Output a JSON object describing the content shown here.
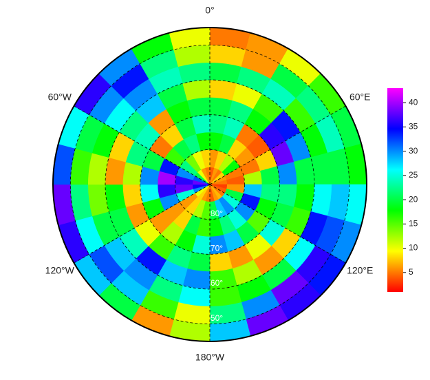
{
  "map": {
    "lon_labels": [
      {
        "value": 0,
        "label": "0°"
      },
      {
        "value": 60,
        "label": "60°E"
      },
      {
        "value": 120,
        "label": "120°E"
      },
      {
        "value": 180,
        "label": "180°W"
      },
      {
        "value": -120,
        "label": "120°W"
      },
      {
        "value": -60,
        "label": "60°W"
      }
    ],
    "lat_labels": [
      {
        "value": 80,
        "label": "80°"
      },
      {
        "value": 70,
        "label": "70°"
      },
      {
        "value": 60,
        "label": "60°"
      },
      {
        "value": 50,
        "label": "50°"
      }
    ],
    "lat_edges": [
      90,
      85,
      80,
      75,
      70,
      65,
      60,
      55,
      50,
      45
    ],
    "lon_edges": [
      0,
      15,
      30,
      45,
      60,
      75,
      90,
      105,
      120,
      135,
      150,
      165,
      180,
      195,
      210,
      225,
      240,
      255,
      270,
      285,
      300,
      315,
      330,
      345,
      360
    ],
    "values": [
      [
        4,
        6,
        5,
        8,
        6,
        5,
        3,
        4,
        5,
        7,
        6,
        4,
        5,
        6,
        8,
        10,
        30,
        35,
        38,
        32,
        20,
        10,
        6,
        5
      ],
      [
        6,
        8,
        12,
        18,
        5,
        4,
        6,
        20,
        25,
        30,
        28,
        20,
        15,
        12,
        8,
        6,
        25,
        38,
        36,
        30,
        22,
        14,
        10,
        8
      ],
      [
        18,
        20,
        8,
        6,
        5,
        12,
        28,
        34,
        30,
        25,
        22,
        18,
        16,
        20,
        8,
        6,
        30,
        36,
        40,
        34,
        16,
        20,
        22,
        18
      ],
      [
        22,
        24,
        5,
        4,
        8,
        20,
        22,
        18,
        15,
        20,
        28,
        30,
        25,
        18,
        12,
        6,
        18,
        26,
        30,
        20,
        5,
        8,
        20,
        24
      ],
      [
        20,
        22,
        18,
        36,
        38,
        30,
        22,
        20,
        25,
        10,
        6,
        8,
        20,
        22,
        16,
        10,
        6,
        8,
        12,
        22,
        24,
        6,
        18,
        20
      ],
      [
        8,
        10,
        16,
        34,
        30,
        20,
        18,
        16,
        8,
        6,
        12,
        16,
        30,
        28,
        34,
        24,
        20,
        18,
        6,
        8,
        22,
        28,
        20,
        12
      ],
      [
        20,
        22,
        24,
        16,
        18,
        20,
        26,
        34,
        26,
        20,
        18,
        16,
        26,
        22,
        30,
        28,
        20,
        14,
        12,
        18,
        26,
        30,
        24,
        22
      ],
      [
        8,
        6,
        20,
        22,
        24,
        20,
        28,
        32,
        36,
        38,
        30,
        22,
        10,
        16,
        28,
        32,
        26,
        22,
        16,
        20,
        30,
        34,
        22,
        12
      ],
      [
        5,
        6,
        10,
        16,
        20,
        18,
        26,
        30,
        34,
        36,
        38,
        28,
        12,
        6,
        20,
        28,
        36,
        38,
        32,
        26,
        36,
        30,
        18,
        10
      ]
    ],
    "colorbar": {
      "lim": [
        1,
        43
      ],
      "ticks": [
        5,
        10,
        15,
        20,
        25,
        30,
        35,
        40
      ]
    }
  }
}
